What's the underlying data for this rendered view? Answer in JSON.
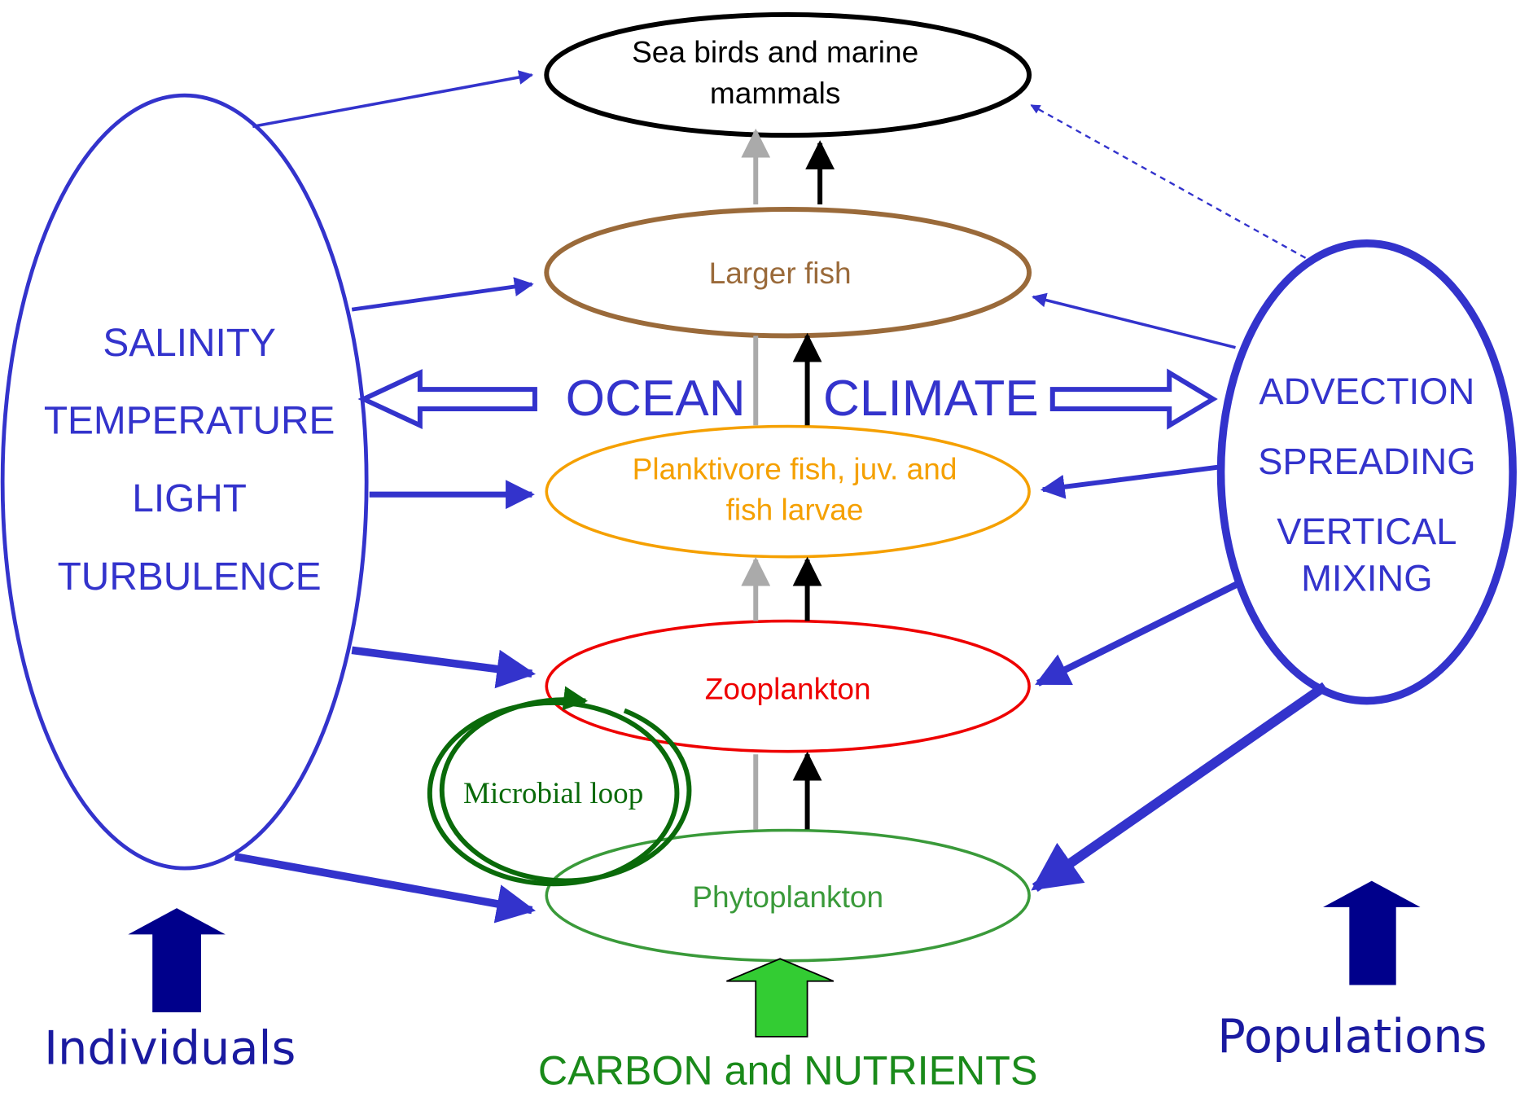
{
  "nodes": [
    {
      "label": [
        "Sea birds and marine",
        "mammals"
      ]
    },
    {
      "label": [
        "Larger fish"
      ]
    },
    {
      "label": [
        "Planktivore fish, juv. and",
        "fish larvae"
      ]
    },
    {
      "label": [
        "Zooplankton"
      ]
    },
    {
      "label": [
        "Phytoplankton"
      ]
    },
    {
      "label": [
        "Microbial loop"
      ]
    }
  ],
  "physical_factors": [
    "SALINITY",
    "TEMPERATURE",
    "LIGHT",
    "TURBULENCE"
  ],
  "transport_factors": [
    "ADVECTION",
    "SPREADING",
    "VERTICAL",
    "MIXING"
  ],
  "center": [
    "OCEAN",
    "CLIMATE"
  ],
  "bottom": {
    "left": "Individuals",
    "right": "Populations",
    "center": "CARBON and NUTRIENTS"
  }
}
